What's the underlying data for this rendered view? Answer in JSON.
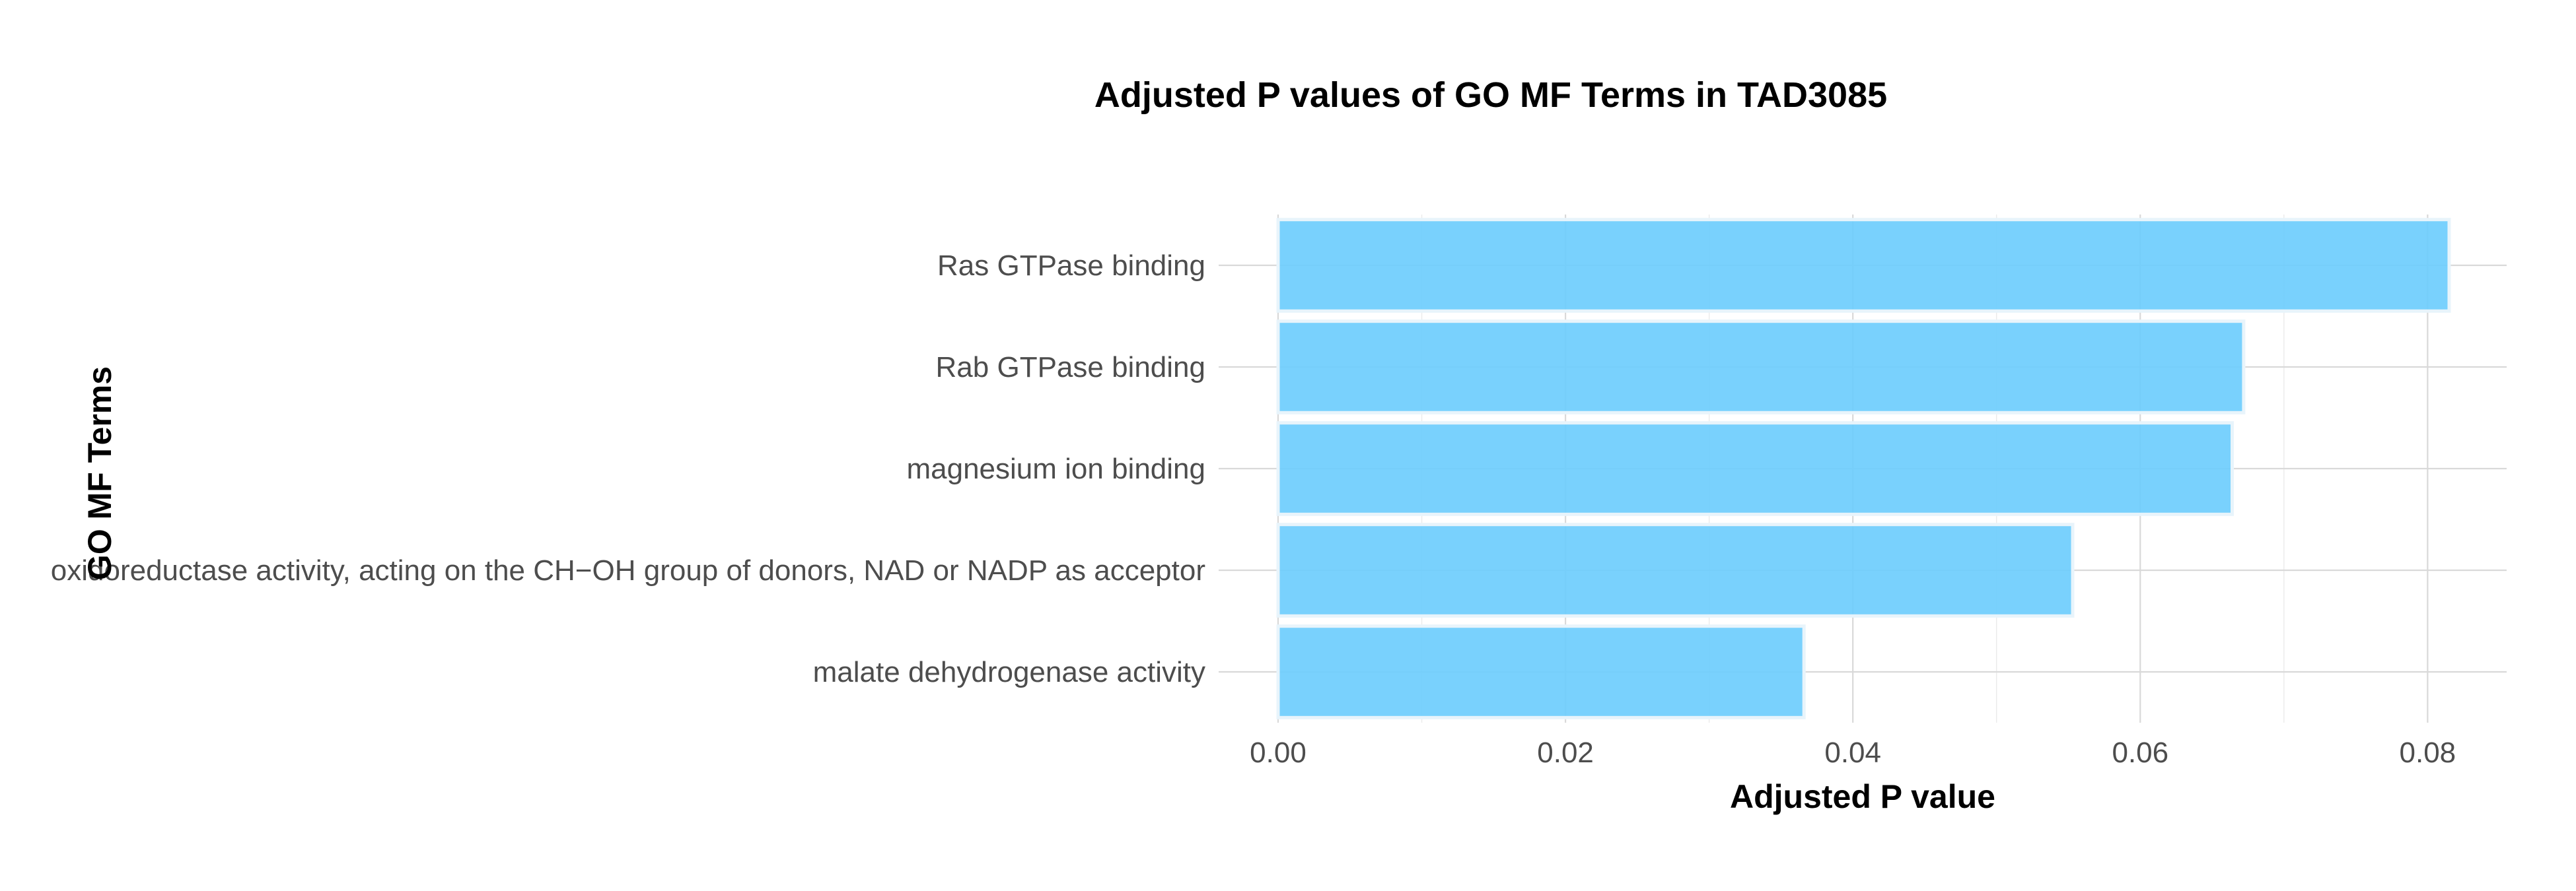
{
  "chart_data": {
    "type": "bar",
    "orientation": "horizontal",
    "title": "Adjusted P values of GO MF Terms in TAD3085",
    "xlabel": "Adjusted P value",
    "ylabel": "GO MF Terms",
    "categories": [
      "Ras GTPase binding",
      "Rab GTPase binding",
      "magnesium ion binding",
      "oxidoreductase activity, acting on the CH−OH group of donors, NAD or NADP as acceptor",
      "malate dehydrogenase activity"
    ],
    "values": [
      0.0815,
      0.0672,
      0.0664,
      0.0553,
      0.0366
    ],
    "xlim": [
      0,
      0.0855
    ],
    "xticks": [
      "0.00",
      "0.02",
      "0.04",
      "0.06",
      "0.08"
    ],
    "grid": true,
    "legend": "none",
    "bar_color": "#6ECDFD",
    "bar_border_color": "#E8F4FB"
  }
}
